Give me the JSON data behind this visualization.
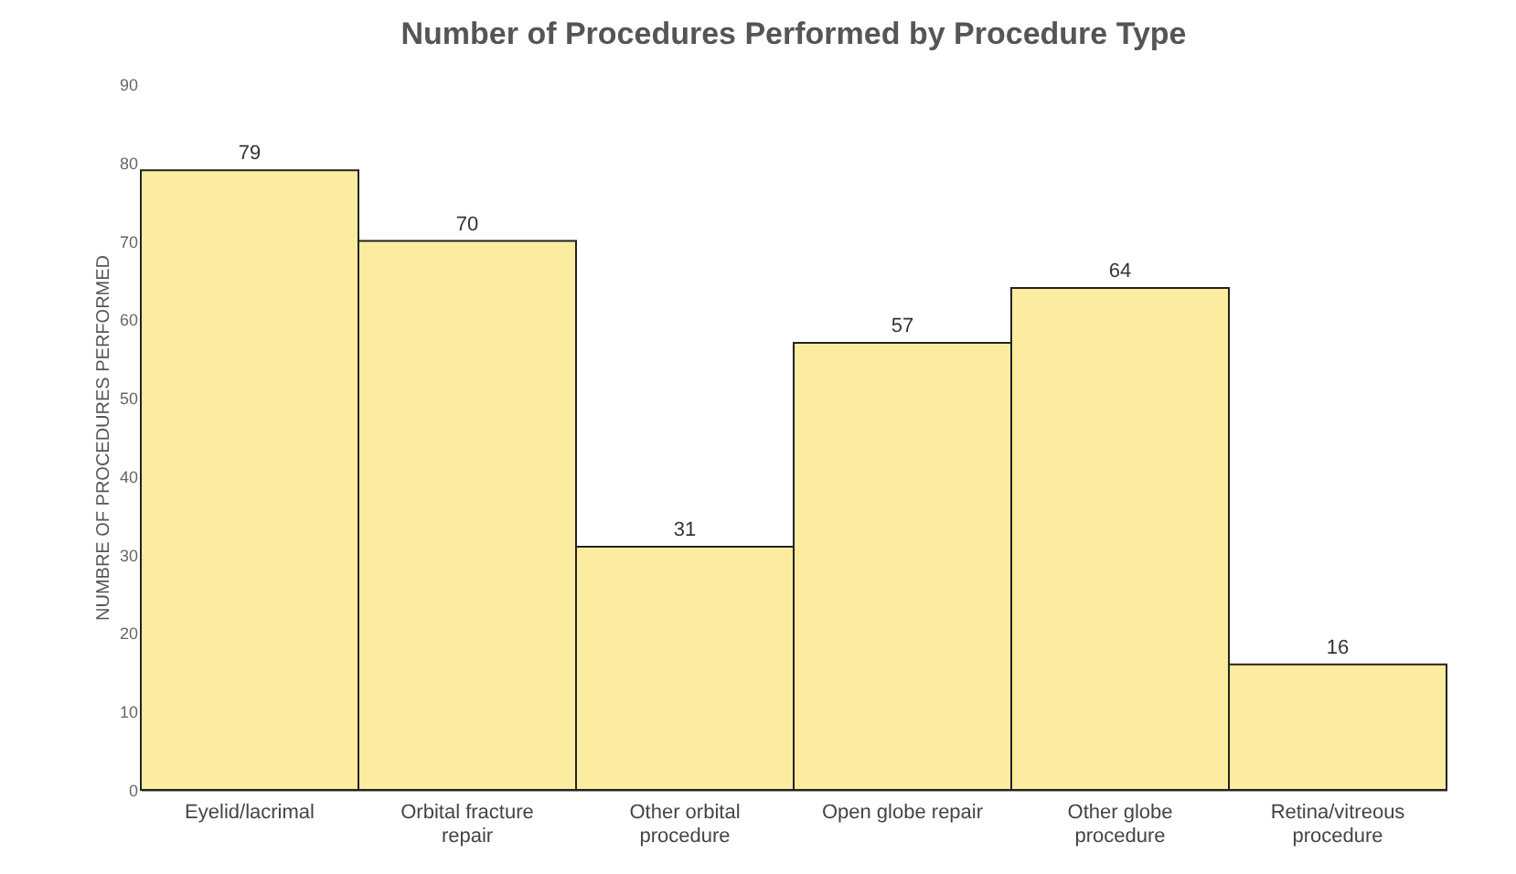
{
  "chart_data": {
    "type": "bar",
    "title": "Number of Procedures Performed by Procedure Type",
    "ylabel": "NUMBRE OF PROCEDURES PERFORMED",
    "categories": [
      "Eyelid/lacrimal",
      "Orbital fracture repair",
      "Other orbital procedure",
      "Open globe repair",
      "Other globe procedure",
      "Retina/vitreous procedure"
    ],
    "values": [
      79,
      70,
      31,
      57,
      64,
      16
    ],
    "color": "#fcec9f",
    "data_labels": true,
    "grid": false,
    "ylim": [
      0,
      90
    ],
    "yticks": [
      0,
      10,
      20,
      30,
      40,
      50,
      60,
      70,
      80,
      90
    ]
  }
}
